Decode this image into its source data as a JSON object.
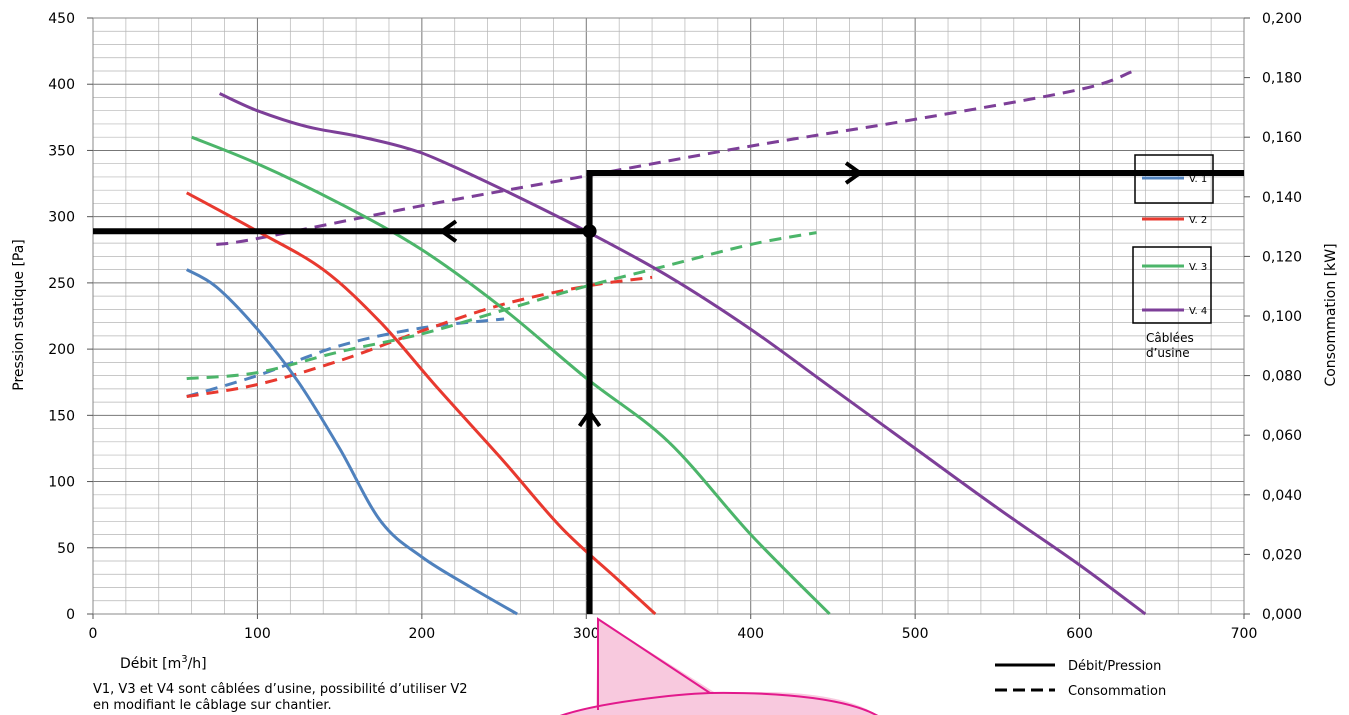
{
  "chart_data": {
    "type": "line",
    "xlabel": "Débit [m³/h]",
    "ylabel": "Pression statique [Pa]",
    "y2label": "Consommation [kW]",
    "xlim": [
      0,
      700
    ],
    "ylim": [
      0,
      450
    ],
    "y2lim": [
      0,
      0.2
    ],
    "grid": true,
    "x_ticks": [
      "0",
      "100",
      "200",
      "300",
      "400",
      "500",
      "600",
      "700"
    ],
    "y_ticks": [
      "0",
      "50",
      "100",
      "150",
      "200",
      "250",
      "300",
      "350",
      "400",
      "450"
    ],
    "y2_ticks": [
      "0,000",
      "0,020",
      "0,040",
      "0,060",
      "0,080",
      "0,100",
      "0,120",
      "0,140",
      "0,160",
      "0,180",
      "0,200"
    ],
    "pressure_series": [
      {
        "name": "V. 1",
        "color": "#4f81bd",
        "points": [
          [
            57,
            260
          ],
          [
            75,
            247
          ],
          [
            100,
            215
          ],
          [
            125,
            175
          ],
          [
            150,
            125
          ],
          [
            175,
            70
          ],
          [
            200,
            43
          ],
          [
            230,
            20
          ],
          [
            258,
            0
          ]
        ]
      },
      {
        "name": "V. 2",
        "color": "#e8392f",
        "points": [
          [
            57,
            318
          ],
          [
            100,
            289
          ],
          [
            140,
            260
          ],
          [
            175,
            220
          ],
          [
            210,
            170
          ],
          [
            250,
            115
          ],
          [
            285,
            65
          ],
          [
            320,
            25
          ],
          [
            342,
            0
          ]
        ]
      },
      {
        "name": "V. 3",
        "color": "#4cb56a",
        "points": [
          [
            60,
            360
          ],
          [
            100,
            340
          ],
          [
            150,
            310
          ],
          [
            200,
            275
          ],
          [
            250,
            230
          ],
          [
            300,
            178
          ],
          [
            350,
            130
          ],
          [
            400,
            60
          ],
          [
            448,
            0
          ]
        ]
      },
      {
        "name": "V. 4",
        "color": "#7d3f98",
        "points": [
          [
            77,
            393
          ],
          [
            100,
            380
          ],
          [
            130,
            368
          ],
          [
            160,
            361
          ],
          [
            190,
            352
          ],
          [
            210,
            343
          ],
          [
            250,
            320
          ],
          [
            300,
            289
          ],
          [
            350,
            255
          ],
          [
            400,
            215
          ],
          [
            450,
            170
          ],
          [
            500,
            125
          ],
          [
            550,
            80
          ],
          [
            600,
            37
          ],
          [
            640,
            0
          ]
        ]
      }
    ],
    "consumption_series": [
      {
        "name": "V. 1",
        "color": "#4f81bd",
        "points": [
          [
            57,
            0.073
          ],
          [
            100,
            0.08
          ],
          [
            150,
            0.09
          ],
          [
            200,
            0.096
          ],
          [
            250,
            0.099
          ]
        ]
      },
      {
        "name": "V. 2",
        "color": "#e8392f",
        "points": [
          [
            57,
            0.073
          ],
          [
            100,
            0.077
          ],
          [
            150,
            0.085
          ],
          [
            200,
            0.095
          ],
          [
            250,
            0.104
          ],
          [
            300,
            0.11
          ],
          [
            340,
            0.113
          ]
        ]
      },
      {
        "name": "V. 3",
        "color": "#4cb56a",
        "points": [
          [
            57,
            0.079
          ],
          [
            100,
            0.081
          ],
          [
            150,
            0.088
          ],
          [
            200,
            0.094
          ],
          [
            250,
            0.102
          ],
          [
            300,
            0.11
          ],
          [
            350,
            0.117
          ],
          [
            400,
            0.124
          ],
          [
            440,
            0.128
          ]
        ]
      },
      {
        "name": "V. 4",
        "color": "#7d3f98",
        "points": [
          [
            75,
            0.124
          ],
          [
            100,
            0.126
          ],
          [
            200,
            0.137
          ],
          [
            300,
            0.147
          ],
          [
            400,
            0.157
          ],
          [
            500,
            0.166
          ],
          [
            600,
            0.176
          ],
          [
            632,
            0.182
          ]
        ]
      }
    ],
    "example_reading": {
      "flow": 302,
      "pressure": 289,
      "consumption": 0.148
    },
    "legend": {
      "curves": [
        "V. 1",
        "V. 2",
        "V. 3",
        "V. 4"
      ],
      "note": [
        "Câblées",
        "d’usine"
      ],
      "line_styles": [
        "Débit/Pression",
        "Consommation"
      ]
    },
    "caption": [
      "V1, V3 et V4 sont câblées d’usine,  possibilité d’utiliser V2",
      "en modifiant le câblage sur chantier."
    ],
    "colors": {
      "grid": "#8a8a8a",
      "reading_line": "#000000",
      "callout_stroke": "#e2198c",
      "callout_fill": "#f8c9de"
    }
  }
}
